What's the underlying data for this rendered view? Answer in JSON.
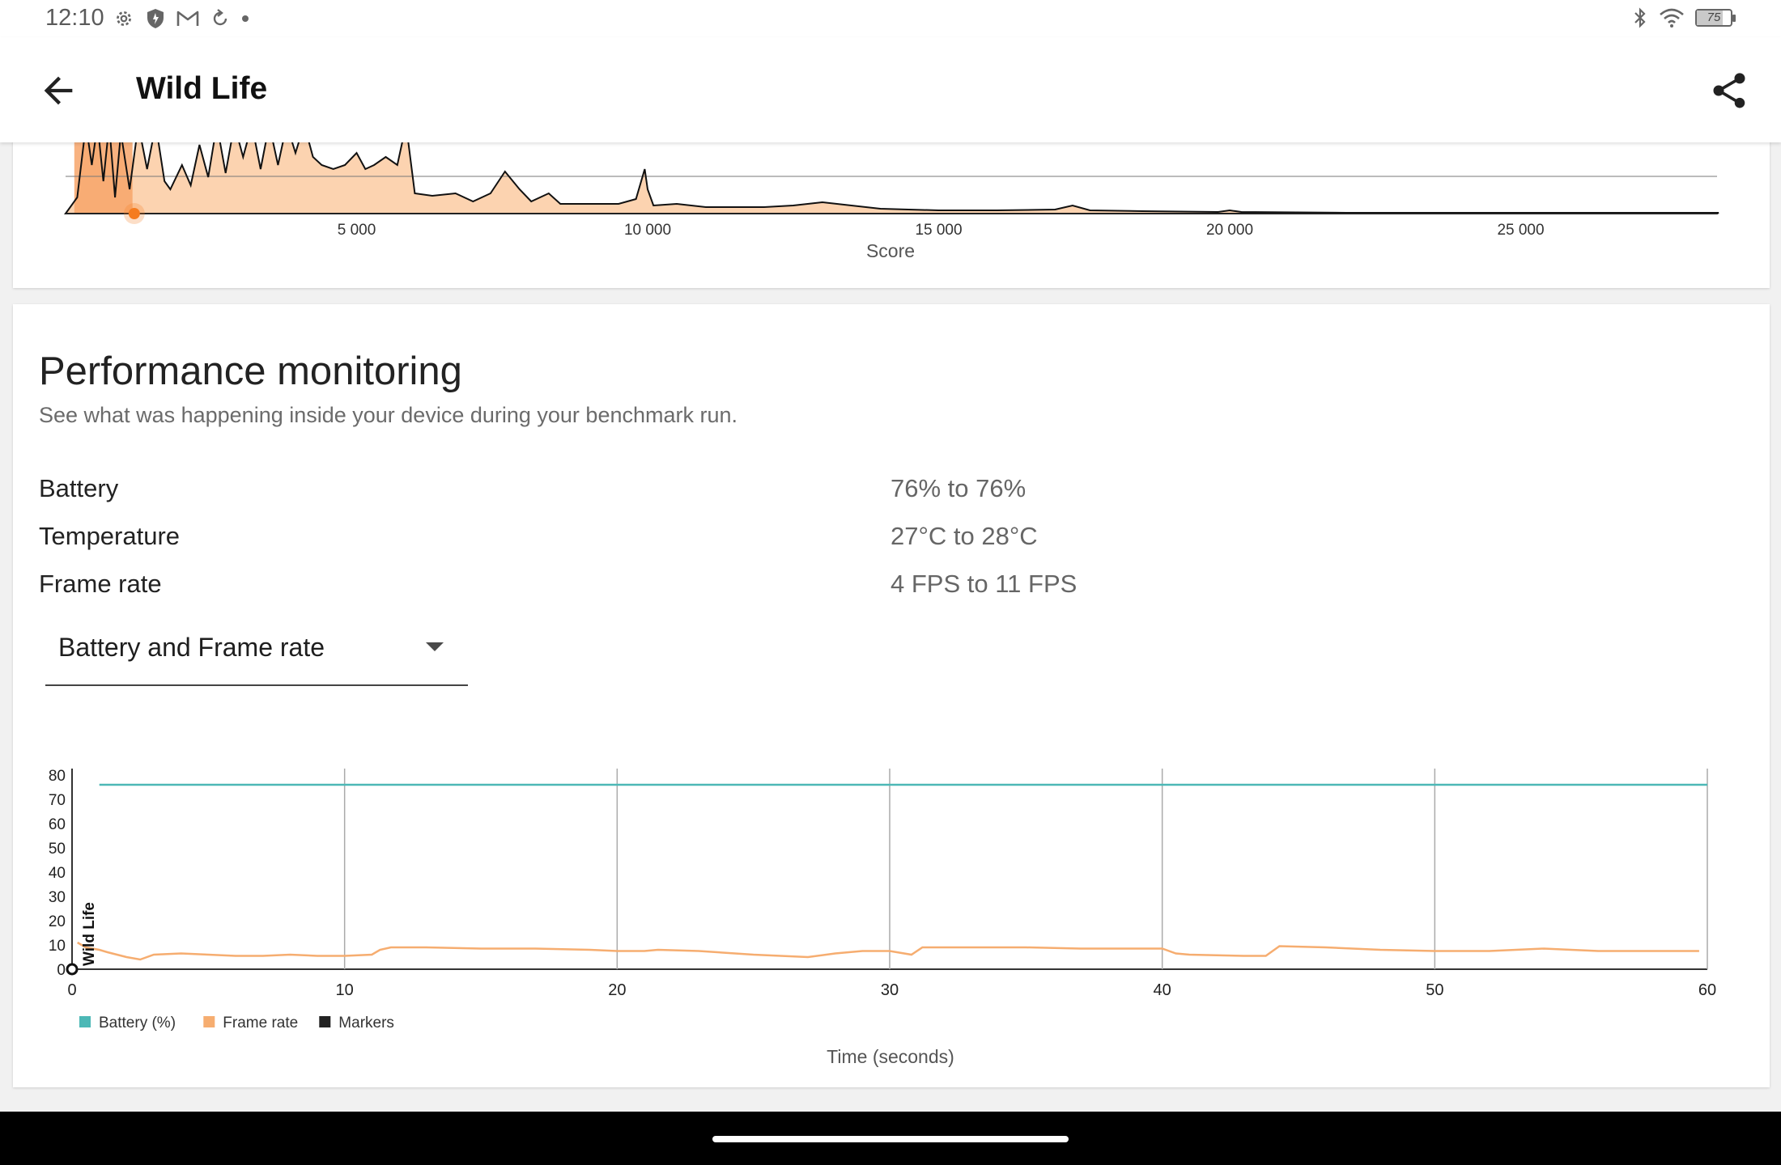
{
  "status_bar": {
    "time": "12:10",
    "left_icons": [
      "settings-icon",
      "shield-icon",
      "gmail-icon",
      "sync-icon",
      "dot-icon"
    ],
    "right_icons": [
      "bluetooth-icon",
      "wifi-icon",
      "battery-icon"
    ],
    "battery_level": "75"
  },
  "app_bar": {
    "title": "Wild Life",
    "back_icon": "arrow-back-icon",
    "share_icon": "share-icon"
  },
  "score_distribution": {
    "xlabel": "Score",
    "tick_labels": [
      "5 000",
      "10 000",
      "15 000",
      "20 000",
      "25 000"
    ],
    "fill_color": "#fcd3b0",
    "highlight_color": "#f7a56a",
    "marker_color": "#f57c1f"
  },
  "performance": {
    "title": "Performance monitoring",
    "subtitle": "See what was happening inside your device during your benchmark run.",
    "stats": [
      {
        "label": "Battery",
        "value": "76% to 76%"
      },
      {
        "label": "Temperature",
        "value": "27°C to 28°C"
      },
      {
        "label": "Frame rate",
        "value": "4 FPS to 11 FPS"
      }
    ],
    "dropdown": {
      "selected": "Battery and Frame rate"
    }
  },
  "chart_data": {
    "type": "line",
    "xlabel": "Time (seconds)",
    "ylabel": "",
    "xlim": [
      0,
      60
    ],
    "ylim": [
      0,
      80
    ],
    "x_ticks": [
      0,
      10,
      20,
      30,
      40,
      50,
      60
    ],
    "y_ticks": [
      0,
      10,
      20,
      30,
      40,
      50,
      60,
      70,
      80
    ],
    "grid": "vertical",
    "legend_position": "bottom-left",
    "marker_label": "Wild Life",
    "marker_x": 0,
    "series": [
      {
        "name": "Battery (%)",
        "color": "#4cb8b6",
        "x": [
          1,
          60
        ],
        "y": [
          76,
          76
        ]
      },
      {
        "name": "Frame rate",
        "color": "#f6ad70",
        "x": [
          0.2,
          0.5,
          1,
          1.3,
          2,
          2.5,
          3,
          4,
          5,
          6,
          7,
          8,
          9,
          10,
          11,
          11.3,
          11.7,
          13,
          15,
          17,
          19,
          20,
          21,
          21.5,
          23,
          25,
          27,
          28,
          29,
          30,
          30.8,
          31.2,
          33,
          35,
          37,
          39,
          40,
          40.5,
          41,
          43,
          43.8,
          44.3,
          46,
          48,
          50,
          52,
          54,
          56,
          58,
          59.7
        ],
        "y": [
          11,
          9,
          8,
          7,
          5,
          4,
          6,
          6.5,
          6,
          5.5,
          5.5,
          6,
          5.5,
          5.5,
          6,
          8,
          9,
          9,
          8.5,
          8.5,
          8,
          7.5,
          7.5,
          8,
          7.5,
          6,
          5,
          6.5,
          7.5,
          7.5,
          6,
          9,
          9,
          9,
          8.5,
          8.5,
          8.5,
          6.5,
          6,
          5.5,
          5.5,
          9.5,
          9,
          8,
          7.5,
          7.5,
          8.5,
          7.5,
          7.5,
          7.5
        ]
      }
    ],
    "legend": [
      {
        "label": "Battery (%)",
        "color": "#4cb8b6"
      },
      {
        "label": "Frame rate",
        "color": "#f6ad70"
      },
      {
        "label": "Markers",
        "color": "#222222"
      }
    ]
  },
  "nav_bar": {
    "home_icon": "home-pill"
  }
}
